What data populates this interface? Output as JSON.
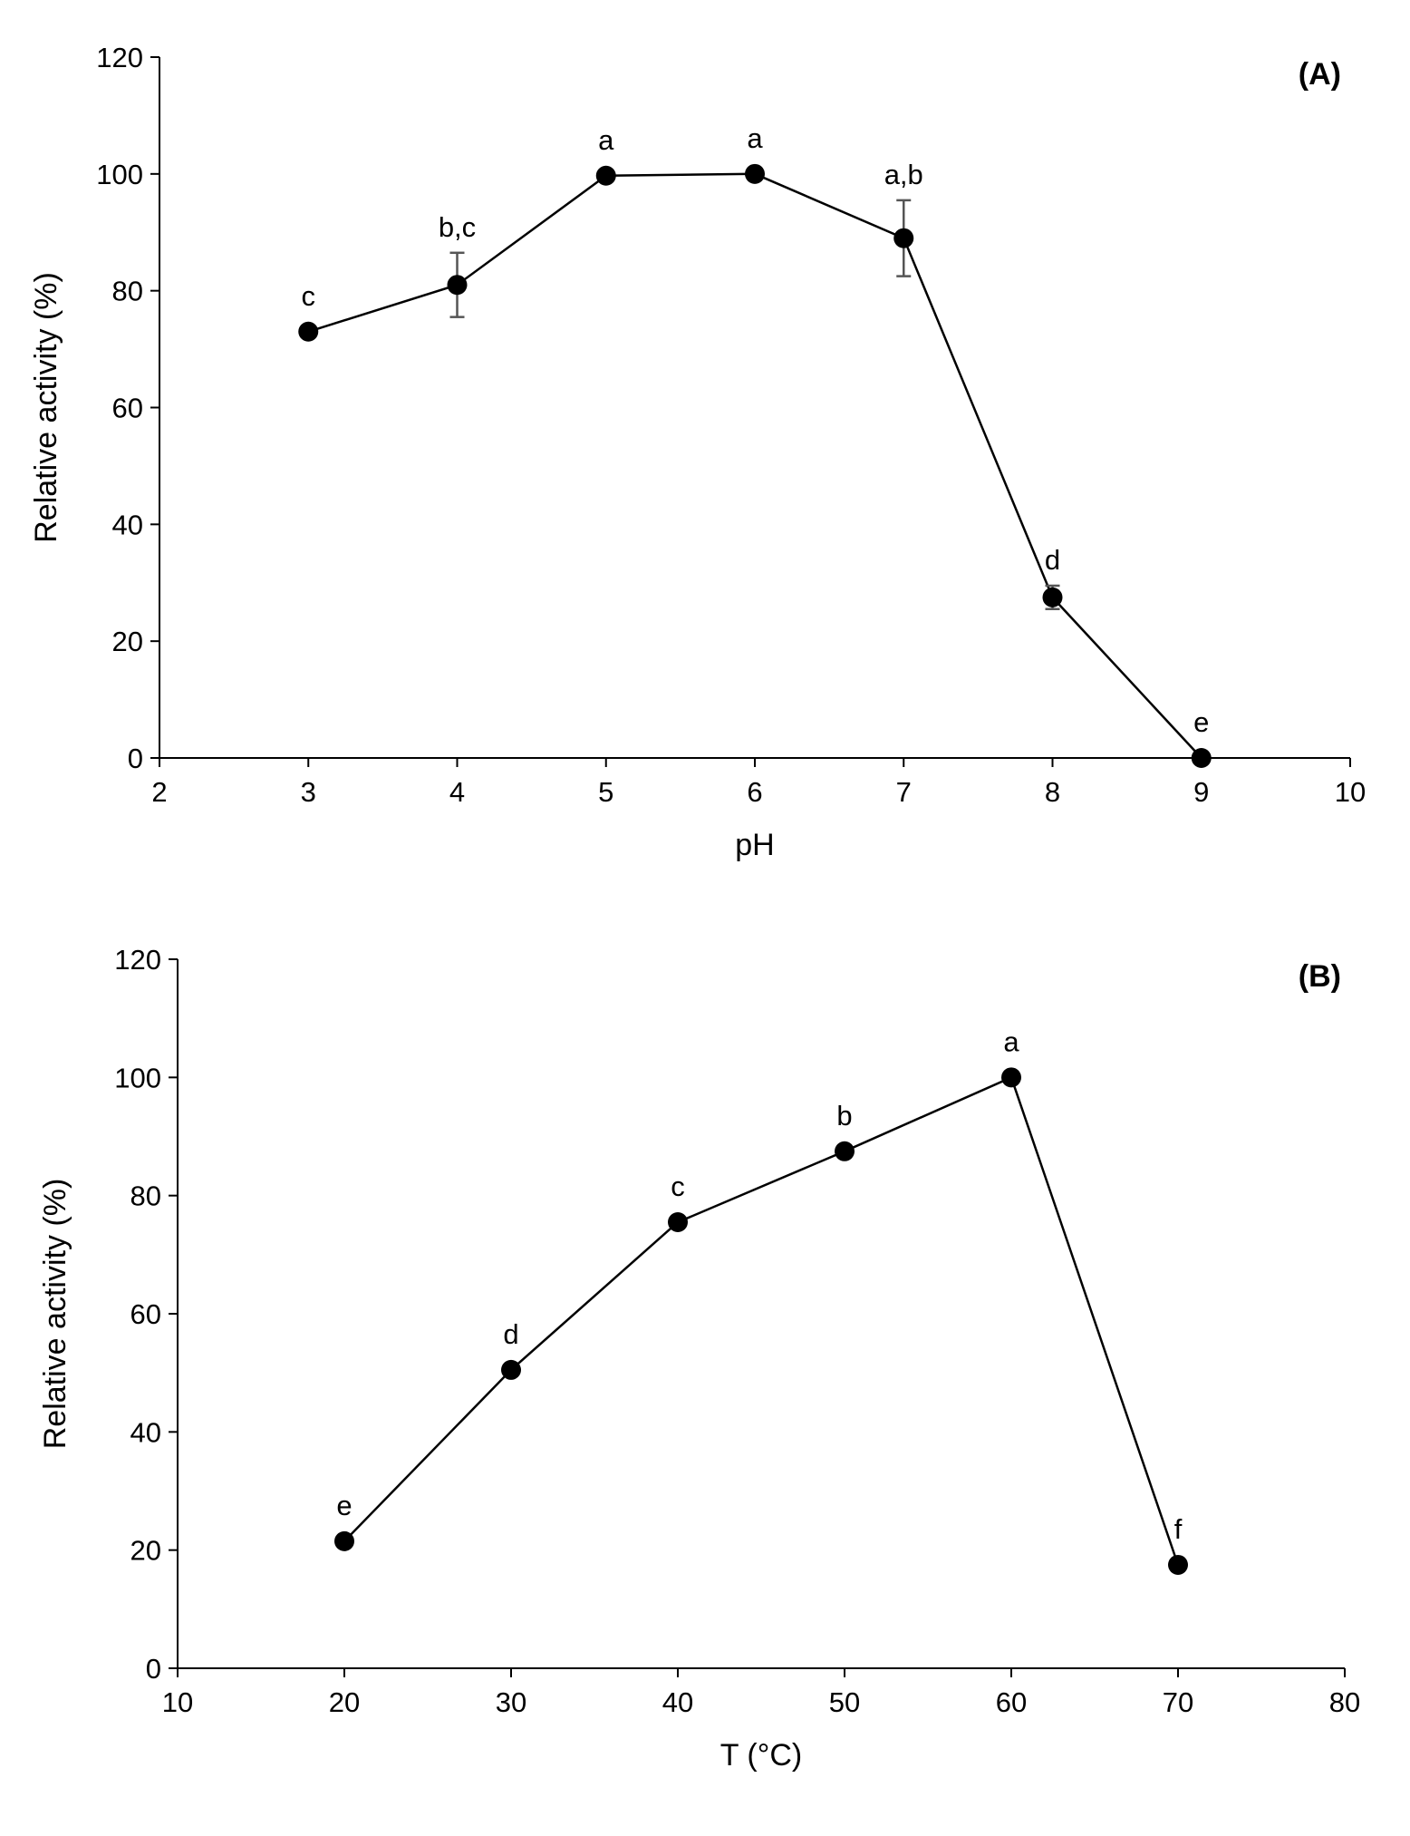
{
  "chart_data": [
    {
      "type": "line",
      "panel_label": "(A)",
      "xlabel": "pH",
      "ylabel": "Relative activity (%)",
      "xlim": [
        2,
        10
      ],
      "ylim": [
        0,
        120
      ],
      "xticks": [
        "2",
        "3",
        "4",
        "5",
        "6",
        "7",
        "8",
        "9",
        "10"
      ],
      "yticks": [
        "0",
        "20",
        "40",
        "60",
        "80",
        "100",
        "120"
      ],
      "grid": false,
      "legend": "none",
      "series": [
        {
          "name": "Relative activity",
          "x": [
            3,
            4,
            5,
            6,
            7,
            8,
            9
          ],
          "y": [
            73,
            81,
            99.7,
            100,
            89,
            27.5,
            0
          ],
          "error": [
            0,
            5.5,
            0,
            0,
            6.5,
            2,
            0
          ],
          "letters": [
            "c",
            "b,c",
            "a",
            "a",
            "a,b",
            "d",
            "e"
          ]
        }
      ]
    },
    {
      "type": "line",
      "panel_label": "(B)",
      "xlabel": "T (°C)",
      "ylabel": "Relative activity (%)",
      "xlim": [
        10,
        80
      ],
      "ylim": [
        0,
        120
      ],
      "xticks": [
        "10",
        "20",
        "30",
        "40",
        "50",
        "60",
        "70",
        "80"
      ],
      "yticks": [
        "0",
        "20",
        "40",
        "60",
        "80",
        "100",
        "120"
      ],
      "grid": false,
      "legend": "none",
      "series": [
        {
          "name": "Relative activity",
          "x": [
            20,
            30,
            40,
            50,
            60,
            70
          ],
          "y": [
            21.5,
            50.5,
            75.5,
            87.5,
            100,
            17.5
          ],
          "error": [
            0,
            0,
            0,
            0,
            0,
            0
          ],
          "letters": [
            "e",
            "d",
            "c",
            "b",
            "a",
            "f"
          ]
        }
      ]
    }
  ]
}
